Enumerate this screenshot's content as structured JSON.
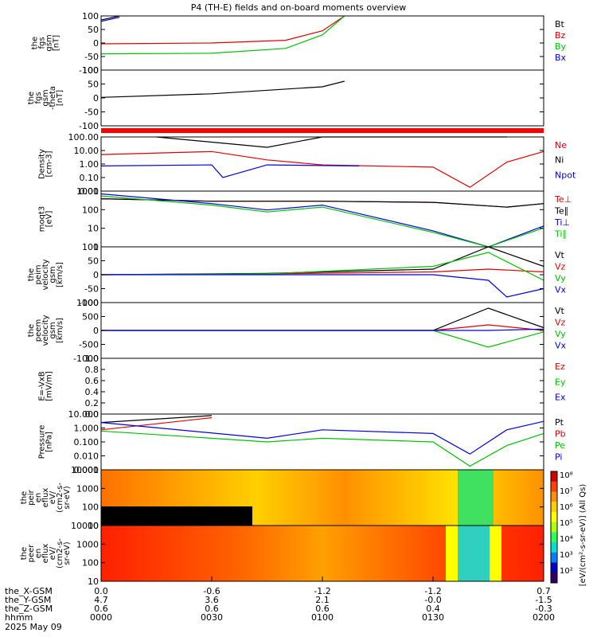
{
  "title": "P4 (TH-E) fields and on-board moments overview",
  "panels": [
    {
      "id": "fgs",
      "ylabel": [
        "the",
        "fgs",
        "gsm",
        "[nT]"
      ],
      "ticks": [
        "100",
        "50",
        "0",
        "-50",
        "-100"
      ],
      "legend": [
        {
          "text": "Bt",
          "color": "#000000"
        },
        {
          "text": "Bz",
          "color": "#e00000"
        },
        {
          "text": "By",
          "color": "#00c000"
        },
        {
          "text": "Bx",
          "color": "#0000e0"
        }
      ]
    },
    {
      "id": "fgs-theta",
      "ylabel": [
        "the",
        "fgs",
        "gsm",
        "-theta",
        "[nT]"
      ],
      "ticks": [
        "100",
        "50",
        "0",
        "-50",
        "-100"
      ],
      "legend": []
    },
    {
      "id": "density",
      "ylabel": [
        "Density",
        "[cm-3]"
      ],
      "ticks": [
        "100.00",
        "10.00",
        "1.00",
        "0.10",
        "0.01"
      ],
      "legend": [
        {
          "text": "Ne",
          "color": "#e00000"
        },
        {
          "text": "Ni",
          "color": "#000000"
        },
        {
          "text": "Npot",
          "color": "#0000e0"
        }
      ]
    },
    {
      "id": "temperature",
      "ylabel": [
        "moqt3",
        "[eV]"
      ],
      "ticks": [
        "1000",
        "100",
        "10",
        "1"
      ],
      "legend": [
        {
          "text": "Te⊥",
          "color": "#e00000"
        },
        {
          "text": "Te∥",
          "color": "#000000"
        },
        {
          "text": "Ti⊥",
          "color": "#0000e0"
        },
        {
          "text": "Ti∥",
          "color": "#00c000"
        }
      ]
    },
    {
      "id": "peim-velocity",
      "ylabel": [
        "the",
        "peim",
        "velocity",
        "gsm",
        "[km/s]"
      ],
      "ticks": [
        "100",
        "50",
        "0",
        "-50",
        "-100"
      ],
      "legend": [
        {
          "text": "Vt",
          "color": "#000000"
        },
        {
          "text": "Vz",
          "color": "#e00000"
        },
        {
          "text": "Vy",
          "color": "#00c000"
        },
        {
          "text": "Vx",
          "color": "#0000e0"
        }
      ]
    },
    {
      "id": "peem-velocity",
      "ylabel": [
        "the",
        "peem",
        "velocity",
        "gsm",
        "[km/s]"
      ],
      "ticks": [
        "1000",
        "500",
        "0",
        "-500",
        "-1000"
      ],
      "legend": [
        {
          "text": "Vt",
          "color": "#000000"
        },
        {
          "text": "Vz",
          "color": "#e00000"
        },
        {
          "text": "Vy",
          "color": "#00c000"
        },
        {
          "text": "Vx",
          "color": "#0000e0"
        }
      ]
    },
    {
      "id": "efield",
      "ylabel": [
        "E=-VxB",
        "[mV/m]"
      ],
      "ticks": [
        "1.0",
        "0.8",
        "0.6",
        "0.4",
        "0.2",
        "0.0"
      ],
      "legend": [
        {
          "text": "Ez",
          "color": "#e00000"
        },
        {
          "text": "Ey",
          "color": "#00c000"
        },
        {
          "text": "Ex",
          "color": "#0000e0"
        }
      ]
    },
    {
      "id": "pressure",
      "ylabel": [
        "Pressure",
        "[nPa]"
      ],
      "ticks": [
        "10.000",
        "1.000",
        "0.100",
        "0.010",
        "0.001"
      ],
      "legend": [
        {
          "text": "Pt",
          "color": "#000000"
        },
        {
          "text": "Pb",
          "color": "#e00000"
        },
        {
          "text": "Pe",
          "color": "#00c000"
        },
        {
          "text": "Pi",
          "color": "#0000e0"
        }
      ]
    },
    {
      "id": "peir-spec",
      "ylabel": [
        "the",
        "peir",
        "en",
        "eflux",
        "eV/",
        "(cm2-s-",
        "sr-eV)"
      ],
      "ticks": [
        "10000",
        "1000",
        "100",
        "10"
      ],
      "legend": []
    },
    {
      "id": "peer-spec",
      "ylabel": [
        "the",
        "peer",
        "en",
        "eflux",
        "eV/",
        "(cm2-s-",
        "sr-eV)"
      ],
      "ticks": [
        "10000",
        "1000",
        "100",
        "10"
      ],
      "legend": []
    }
  ],
  "colorbar": {
    "ticks": [
      "10⁸",
      "10⁷",
      "10⁶",
      "10⁵",
      "10⁴",
      "10³",
      "10²"
    ],
    "label": "[eV/(cm²-s-sr-eV)] (All Qs)",
    "colors": [
      "#d00000",
      "#ff4000",
      "#ff9000",
      "#ffd000",
      "#ffff00",
      "#b0ff00",
      "#30ff60",
      "#00e0d0",
      "#0080ff",
      "#0000c0",
      "#300060"
    ]
  },
  "footer": {
    "rows": [
      {
        "label": "the_X-GSM",
        "values": [
          "0.0",
          "-0.6",
          "-1.2",
          "-1.2",
          "0.7"
        ]
      },
      {
        "label": "the_Y-GSM",
        "values": [
          "4.7",
          "3.6",
          "2.1",
          "-0.0",
          "-1.5"
        ]
      },
      {
        "label": "the_Z-GSM",
        "values": [
          "0.6",
          "0.6",
          "0.6",
          "0.4",
          "-0.3"
        ]
      },
      {
        "label": "hhmm",
        "values": [
          "0000",
          "0030",
          "0100",
          "0130",
          "0200"
        ]
      }
    ],
    "date": "2025 May 09"
  },
  "chart_data": {
    "type": "line",
    "title": "P4 (TH-E) fields and on-board moments overview",
    "x_ticks": [
      "0000",
      "0030",
      "0100",
      "0130",
      "0200"
    ],
    "panels": [
      {
        "id": "fgs",
        "ylim": [
          -100,
          100
        ],
        "series": [
          {
            "name": "Bt",
            "x": [
              "0000",
              "0005"
            ],
            "values": [
              85,
              100
            ]
          },
          {
            "name": "Bz",
            "x": [
              "0000",
              "0030",
              "0050",
              "0100",
              "0106"
            ],
            "values": [
              -3,
              0,
              10,
              45,
              100
            ]
          },
          {
            "name": "By",
            "x": [
              "0000",
              "0030",
              "0050",
              "0100",
              "0106"
            ],
            "values": [
              -40,
              -38,
              -20,
              30,
              100
            ]
          },
          {
            "name": "Bx",
            "x": [
              "0000",
              "0005"
            ],
            "values": [
              80,
              95
            ]
          }
        ]
      },
      {
        "id": "fgs-theta",
        "ylim": [
          -100,
          100
        ],
        "series": [
          {
            "name": "Bt",
            "x": [
              "0000",
              "0030",
              "0100",
              "0106"
            ],
            "values": [
              2,
              15,
              40,
              60
            ]
          }
        ]
      },
      {
        "id": "density",
        "log": true,
        "ylim": [
          0.005,
          100
        ],
        "series": [
          {
            "name": "Ne",
            "x": [
              "0000",
              "0030",
              "0045",
              "0100",
              "0130",
              "0140",
              "0150",
              "0200"
            ],
            "values": [
              4,
              7,
              1.5,
              0.6,
              0.4,
              0.01,
              1,
              7
            ]
          },
          {
            "name": "Ni",
            "x": [
              "0015",
              "0045",
              "0100",
              "0150"
            ],
            "values": [
              100,
              15,
              100,
              100
            ]
          },
          {
            "name": "Npot",
            "x": [
              "0000",
              "0030",
              "0033",
              "0045",
              "0110"
            ],
            "values": [
              0.5,
              0.6,
              0.06,
              0.6,
              0.5
            ]
          }
        ]
      },
      {
        "id": "temperature",
        "log": true,
        "ylim": [
          1,
          3000
        ],
        "series": [
          {
            "name": "Te⊥",
            "x": [
              "0000",
              "0030",
              "0100",
              "0130",
              "0150",
              "0200"
            ],
            "values": [
              1000,
              700,
              700,
              600,
              300,
              500
            ]
          },
          {
            "name": "Te∥",
            "x": [
              "0000",
              "0030",
              "0100",
              "0130",
              "0150",
              "0200"
            ],
            "values": [
              1000,
              700,
              700,
              600,
              300,
              500
            ]
          },
          {
            "name": "Ti⊥",
            "x": [
              "0000",
              "0030",
              "0045",
              "0100",
              "0130",
              "0145",
              "0200"
            ],
            "values": [
              2000,
              500,
              200,
              400,
              10,
              1,
              20
            ]
          },
          {
            "name": "Ti∥",
            "x": [
              "0000",
              "0030",
              "0045",
              "0100",
              "0130",
              "0145",
              "0200"
            ],
            "values": [
              1500,
              400,
              150,
              300,
              8,
              1,
              15
            ]
          }
        ]
      },
      {
        "id": "peim-velocity",
        "ylim": [
          -100,
          100
        ],
        "series": [
          {
            "name": "Vt",
            "x": [
              "0000",
              "0045",
              "0130",
              "0145",
              "0200"
            ],
            "values": [
              0,
              5,
              20,
              100,
              30
            ]
          },
          {
            "name": "Vz",
            "x": [
              "0000",
              "0045",
              "0130",
              "0145",
              "0200"
            ],
            "values": [
              0,
              3,
              10,
              20,
              10
            ]
          },
          {
            "name": "Vy",
            "x": [
              "0000",
              "0045",
              "0130",
              "0145",
              "0200"
            ],
            "values": [
              0,
              3,
              30,
              80,
              -20
            ]
          },
          {
            "name": "Vx",
            "x": [
              "0000",
              "0130",
              "0145",
              "0150",
              "0200"
            ],
            "values": [
              0,
              0,
              -20,
              -80,
              -50
            ]
          }
        ]
      },
      {
        "id": "peem-velocity",
        "ylim": [
          -1000,
          1000
        ],
        "series": [
          {
            "name": "Vt",
            "x": [
              "0000",
              "0130",
              "0145",
              "0200"
            ],
            "values": [
              0,
              0,
              800,
              100
            ]
          },
          {
            "name": "Vz",
            "x": [
              "0000",
              "0130",
              "0145",
              "0200"
            ],
            "values": [
              0,
              0,
              200,
              0
            ]
          },
          {
            "name": "Vy",
            "x": [
              "0000",
              "0130",
              "0145",
              "0200"
            ],
            "values": [
              0,
              0,
              -600,
              -50
            ]
          },
          {
            "name": "Vx",
            "x": [
              "0000",
              "0130",
              "0145",
              "0200"
            ],
            "values": [
              0,
              0,
              0,
              50
            ]
          }
        ]
      },
      {
        "id": "pressure",
        "log": true,
        "ylim": [
          0.0005,
          20
        ],
        "series": [
          {
            "name": "Pt",
            "x": [
              "0000",
              "0030"
            ],
            "values": [
              4,
              15
            ]
          },
          {
            "name": "Pb",
            "x": [
              "0000",
              "0030"
            ],
            "values": [
              1,
              10
            ]
          },
          {
            "name": "Pe",
            "x": [
              "0000",
              "0045",
              "0100",
              "0130",
              "0140",
              "0150",
              "0200"
            ],
            "values": [
              0.8,
              0.1,
              0.2,
              0.1,
              0.001,
              0.05,
              0.5
            ]
          },
          {
            "name": "Pi",
            "x": [
              "0000",
              "0045",
              "0100",
              "0130",
              "0140",
              "0150",
              "0200"
            ],
            "values": [
              4,
              0.2,
              1,
              0.5,
              0.01,
              1,
              5
            ]
          }
        ]
      }
    ]
  }
}
